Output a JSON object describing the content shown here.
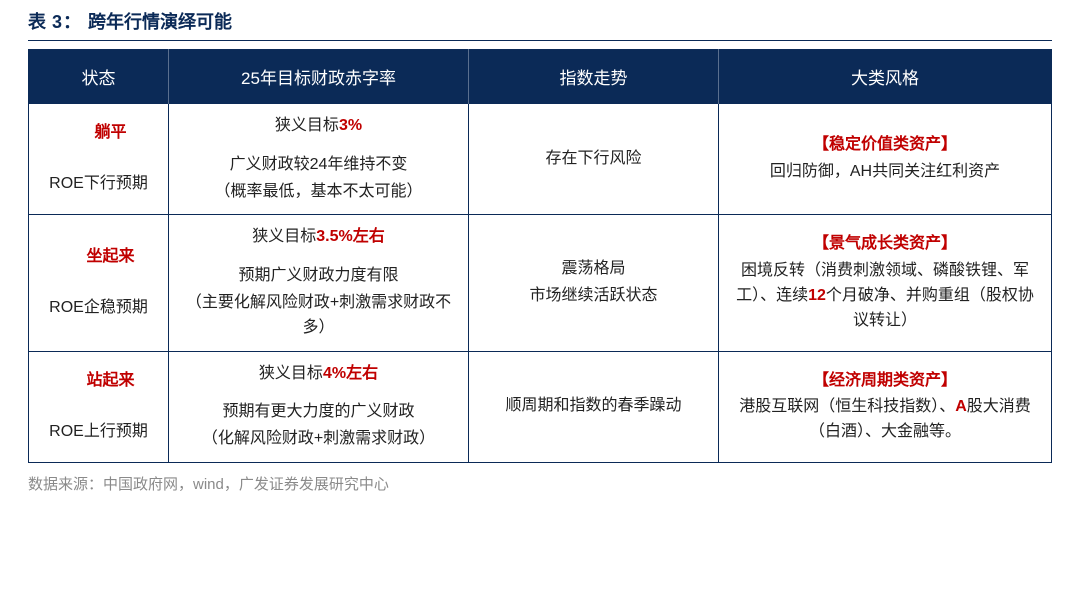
{
  "title_prefix": "表",
  "title_num": "3：",
  "title_text": "跨年行情演绎可能",
  "headers": {
    "h1": "状态",
    "h2": "25年目标财政赤字率",
    "h3": "指数走势",
    "h4": "大类风格"
  },
  "rows": {
    "r1": {
      "state_main": "躺平",
      "state_sub": "ROE下行预期",
      "t_line1_pre": "狭义目标",
      "t_line1_red": "3%",
      "t_line1_post": "",
      "t_line2a": "广义财政较24年维持不变",
      "t_line2b": "（概率最低，基本不太可能）",
      "trend": "存在下行风险",
      "style_tag": "【稳定价值类资产】",
      "style_body": "回归防御，AH共同关注红利资产"
    },
    "r2": {
      "state_main": "坐起来",
      "state_sub": "ROE企稳预期",
      "t_line1_pre": "狭义目标",
      "t_line1_red": "3.5%",
      "t_line1_post": "左右",
      "t_line2a": "预期广义财政力度有限",
      "t_line2b": "（主要化解风险财政+刺激需求财政不多）",
      "trend_a": "震荡格局",
      "trend_b": "市场继续活跃状态",
      "style_tag": "【景气成长类资产】",
      "style_body_a": "困境反转（消费刺激领域、磷酸铁锂、军工）、连续",
      "style_body_red": "12",
      "style_body_b": "个月破净、并购重组（股权协议转让）"
    },
    "r3": {
      "state_main": "站起来",
      "state_sub": "ROE上行预期",
      "t_line1_pre": "狭义目标",
      "t_line1_red": "4%",
      "t_line1_post": "左右",
      "t_line2a": "预期有更大力度的广义财政",
      "t_line2b": "（化解风险财政+刺激需求财政）",
      "trend": "顺周期和指数的春季躁动",
      "style_tag": "【经济周期类资产】",
      "style_body_a": "港股互联网（恒生科技指数）、",
      "style_body_red": "A",
      "style_body_b": "股大消费（白酒）、大金融等。"
    }
  },
  "source": "数据来源：中国政府网，wind，广发证券发展研究中心"
}
